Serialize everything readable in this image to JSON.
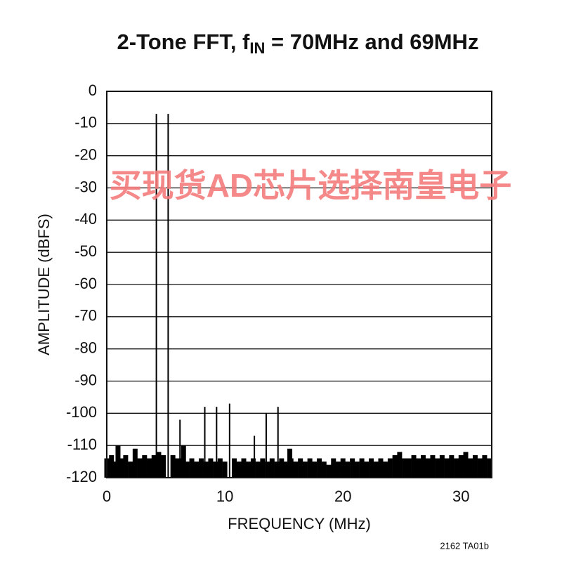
{
  "chart_data": {
    "type": "stem",
    "title": [
      "2-Tone FFT, f",
      "IN",
      " = 70MHz and 69MHz"
    ],
    "xlabel": "FREQUENCY (MHz)",
    "ylabel": "AMPLITUDE (dBFS)",
    "watermark": "买现货AD芯片选择南皇电子",
    "footnote": "2162 TA01b",
    "color": "#000000",
    "grid": true,
    "xlim": [
      0,
      32.6
    ],
    "xticks": [
      0,
      10,
      20,
      30
    ],
    "ylim": [
      -120,
      0
    ],
    "yticks": [
      0,
      -10,
      -20,
      -30,
      -40,
      -50,
      -60,
      -70,
      -80,
      -90,
      -100,
      -110,
      -120
    ],
    "x": [
      0,
      0.4,
      0.8,
      0.95,
      1.2,
      1.6,
      2.0,
      2.4,
      2.8,
      3.2,
      3.6,
      4.0,
      4.2,
      4.4,
      4.8,
      5.2,
      5.6,
      6.0,
      6.2,
      6.4,
      6.5,
      6.8,
      7.2,
      7.6,
      8.0,
      8.3,
      8.4,
      8.8,
      9.2,
      9.3,
      9.6,
      10.0,
      10.4,
      10.8,
      11.2,
      11.6,
      12.0,
      12.4,
      12.5,
      12.8,
      13.2,
      13.5,
      13.6,
      14.0,
      14.4,
      14.5,
      14.8,
      15.2,
      15.5,
      15.6,
      16.0,
      16.4,
      16.8,
      17.2,
      17.6,
      18.0,
      18.4,
      18.8,
      19.2,
      19.6,
      20.0,
      20.4,
      20.8,
      21.2,
      21.6,
      22.0,
      22.4,
      22.8,
      23.2,
      23.6,
      24.0,
      24.4,
      24.8,
      25.2,
      25.6,
      26.0,
      26.4,
      26.8,
      27.2,
      27.6,
      28.0,
      28.4,
      28.8,
      29.2,
      29.6,
      30.0,
      30.4,
      30.8,
      31.2,
      31.6,
      32.0,
      32.4
    ],
    "values": [
      -114,
      -113,
      -115,
      -110,
      -114,
      -113,
      -115,
      -111,
      -114,
      -113,
      -114,
      -113,
      -7,
      -112,
      -113,
      -7,
      -113,
      -114,
      -102,
      -114,
      -110,
      -115,
      -114,
      -115,
      -114,
      -98,
      -115,
      -114,
      -115,
      -98,
      -114,
      -115,
      -97,
      -114,
      -115,
      -114,
      -115,
      -114,
      -107,
      -115,
      -114,
      -100,
      -115,
      -114,
      -115,
      -98,
      -114,
      -115,
      -111,
      -114,
      -115,
      -114,
      -115,
      -114,
      -115,
      -114,
      -115,
      -116,
      -114,
      -115,
      -114,
      -115,
      -114,
      -115,
      -114,
      -115,
      -114,
      -115,
      -114,
      -115,
      -114,
      -113,
      -112,
      -114,
      -114,
      -113,
      -114,
      -113,
      -114,
      -113,
      -114,
      -113,
      -114,
      -113,
      -114,
      -113,
      -112,
      -114,
      -113,
      -114,
      -113,
      -114
    ]
  }
}
